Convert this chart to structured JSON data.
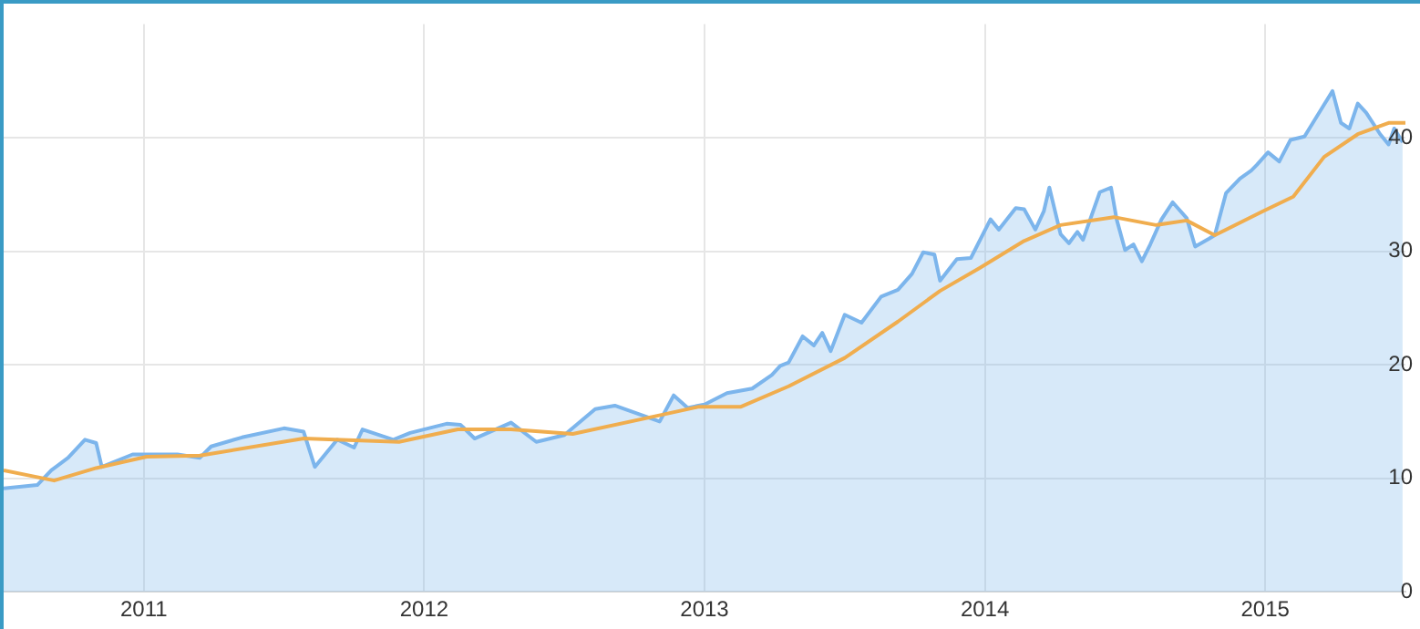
{
  "chart_data": {
    "type": "area",
    "xlim": [
      2010.5,
      2015.5
    ],
    "xticks": [
      2011,
      2012,
      2013,
      2014,
      2015
    ],
    "ylim": [
      0,
      50
    ],
    "yticks": [
      0,
      10,
      20,
      30,
      40
    ],
    "grid": true,
    "legend": false,
    "marker": "none",
    "series": [
      {
        "color": "#7cb5ec",
        "x": [
          2010.5,
          2010.62,
          2010.67,
          2010.73,
          2010.79,
          2010.83,
          2010.85,
          2010.96,
          2011.12,
          2011.2,
          2011.24,
          2011.35,
          2011.5,
          2011.57,
          2011.61,
          2011.69,
          2011.75,
          2011.78,
          2011.89,
          2011.95,
          2012.08,
          2012.13,
          2012.18,
          2012.31,
          2012.4,
          2012.5,
          2012.61,
          2012.68,
          2012.76,
          2012.84,
          2012.89,
          2012.94,
          2013.0,
          2013.08,
          2013.17,
          2013.24,
          2013.27,
          2013.3,
          2013.35,
          2013.39,
          2013.42,
          2013.45,
          2013.5,
          2013.56,
          2013.63,
          2013.69,
          2013.74,
          2013.78,
          2013.82,
          2013.84,
          2013.9,
          2013.95,
          2014.02,
          2014.05,
          2014.11,
          2014.14,
          2014.18,
          2014.21,
          2014.23,
          2014.27,
          2014.3,
          2014.33,
          2014.35,
          2014.41,
          2014.45,
          2014.47,
          2014.5,
          2014.53,
          2014.56,
          2014.59,
          2014.63,
          2014.67,
          2014.72,
          2014.75,
          2014.8,
          2014.82,
          2014.86,
          2014.91,
          2014.95,
          2014.97,
          2015.01,
          2015.05,
          2015.09,
          2015.14,
          2015.2,
          2015.24,
          2015.27,
          2015.3,
          2015.33,
          2015.36,
          2015.41,
          2015.44,
          2015.46,
          2015.49
        ],
        "values": [
          9.1,
          9.4,
          10.7,
          11.8,
          13.4,
          13.1,
          11.0,
          12.1,
          12.1,
          11.8,
          12.8,
          13.6,
          14.4,
          14.1,
          11.0,
          13.4,
          12.7,
          14.3,
          13.4,
          14.0,
          14.8,
          14.7,
          13.5,
          14.9,
          13.2,
          13.8,
          16.1,
          16.4,
          15.7,
          15.0,
          17.3,
          16.2,
          16.5,
          17.5,
          17.9,
          19.1,
          19.9,
          20.2,
          22.5,
          21.7,
          22.8,
          21.2,
          24.4,
          23.7,
          26.0,
          26.6,
          28.0,
          29.9,
          29.7,
          27.4,
          29.3,
          29.4,
          32.8,
          31.9,
          33.8,
          33.7,
          31.9,
          33.5,
          35.6,
          31.5,
          30.7,
          31.7,
          31.0,
          35.2,
          35.6,
          32.8,
          30.1,
          30.6,
          29.1,
          30.6,
          32.8,
          34.3,
          32.9,
          30.4,
          31.1,
          31.4,
          35.1,
          36.4,
          37.1,
          37.6,
          38.7,
          37.9,
          39.8,
          40.1,
          42.5,
          44.1,
          41.3,
          40.8,
          43.0,
          42.2,
          40.3,
          39.4,
          40.8,
          39.6
        ]
      },
      {
        "type": "line",
        "color": "#f0ad4e",
        "x": [
          2010.5,
          2010.68,
          2010.83,
          2011.01,
          2011.2,
          2011.57,
          2011.91,
          2012.12,
          2012.31,
          2012.53,
          2012.85,
          2012.98,
          2013.13,
          2013.3,
          2013.5,
          2013.69,
          2013.84,
          2013.98,
          2014.14,
          2014.27,
          2014.46,
          2014.61,
          2014.72,
          2014.82,
          2014.99,
          2015.1,
          2015.21,
          2015.33,
          2015.44,
          2015.5
        ],
        "values": [
          10.7,
          9.8,
          10.9,
          11.9,
          12.0,
          13.5,
          13.2,
          14.3,
          14.3,
          13.9,
          15.6,
          16.3,
          16.3,
          18.1,
          20.6,
          23.8,
          26.5,
          28.5,
          30.9,
          32.3,
          33.0,
          32.3,
          32.7,
          31.4,
          33.5,
          34.8,
          38.3,
          40.3,
          41.3,
          41.3
        ]
      }
    ]
  }
}
